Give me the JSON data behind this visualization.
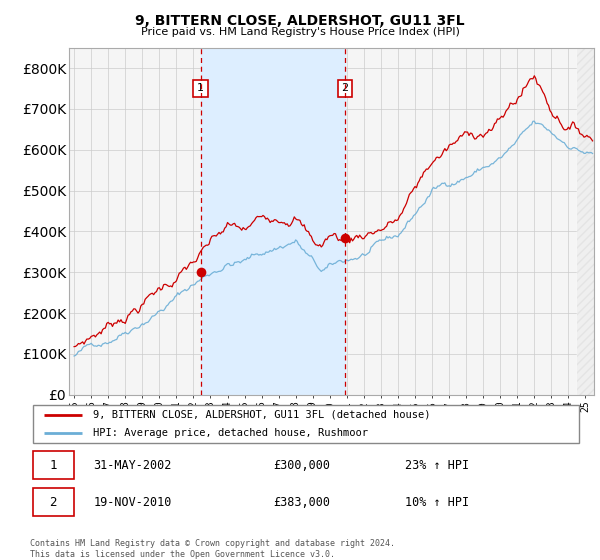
{
  "title": "9, BITTERN CLOSE, ALDERSHOT, GU11 3FL",
  "subtitle": "Price paid vs. HM Land Registry's House Price Index (HPI)",
  "legend_line1": "9, BITTERN CLOSE, ALDERSHOT, GU11 3FL (detached house)",
  "legend_line2": "HPI: Average price, detached house, Rushmoor",
  "annotation1_label": "1",
  "annotation1_date": "31-MAY-2002",
  "annotation1_price": "£300,000",
  "annotation1_hpi": "23% ↑ HPI",
  "annotation2_label": "2",
  "annotation2_date": "19-NOV-2010",
  "annotation2_price": "£383,000",
  "annotation2_hpi": "10% ↑ HPI",
  "footer": "Contains HM Land Registry data © Crown copyright and database right 2024.\nThis data is licensed under the Open Government Licence v3.0.",
  "hpi_color": "#6baed6",
  "price_color": "#cc0000",
  "annotation_box_color": "#cc0000",
  "vline_color": "#cc0000",
  "shade_color": "#ddeeff",
  "background_color": "#f0f0f0",
  "plot_bg_color": "#ffffff",
  "hatch_color": "#cccccc",
  "ylim": [
    0,
    850000
  ],
  "yticks": [
    0,
    100000,
    200000,
    300000,
    400000,
    500000,
    600000,
    700000,
    800000
  ],
  "sale1_x": 2002.42,
  "sale1_y": 300000,
  "sale2_x": 2010.89,
  "sale2_y": 383000,
  "xmin": 1995.0,
  "xmax": 2025.5
}
